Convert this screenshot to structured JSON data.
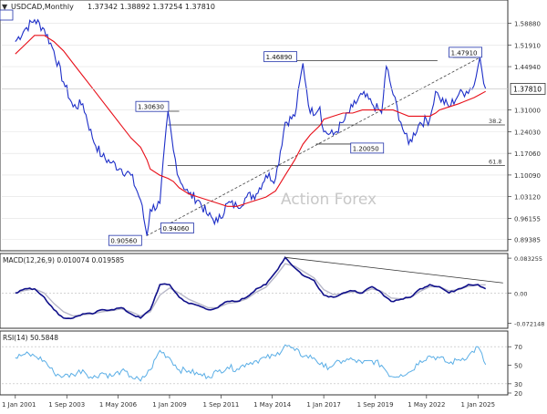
{
  "header": {
    "symbol": "USDCAD,Monthly",
    "ohlc": "1.37342 1.38892 1.37254 1.37810"
  },
  "watermark": "Action Forex",
  "colors": {
    "price": "#1e2fc8",
    "ma": "#e8101a",
    "macd": "#10108a",
    "signal": "#b8b8c8",
    "rsi": "#5aaee6",
    "levels": "#333333",
    "grid": "#e0e0e0",
    "frame": "#333333"
  },
  "chart_data": [
    {
      "type": "line",
      "panel": "price",
      "ylim": [
        0.866,
        1.652
      ],
      "y_ticks": [
        "1.58880",
        "1.51910",
        "1.44940",
        "1.37810",
        "1.31000",
        "1.24030",
        "1.17060",
        "1.10090",
        "1.03120",
        "0.96155",
        "0.89385"
      ],
      "current_value": "1.37810",
      "x": [
        2001.0,
        2001.5,
        2002.0,
        2002.5,
        2003.0,
        2003.5,
        2004.0,
        2004.5,
        2005.0,
        2005.5,
        2006.0,
        2006.5,
        2007.0,
        2007.5,
        2007.83,
        2008.0,
        2008.5,
        2008.92,
        2009.2,
        2009.5,
        2010.0,
        2010.5,
        2011.0,
        2011.5,
        2012.0,
        2012.5,
        2013.0,
        2013.5,
        2014.0,
        2014.5,
        2015.0,
        2015.5,
        2015.92,
        2016.3,
        2016.8,
        2017.0,
        2017.5,
        2018.0,
        2018.5,
        2019.0,
        2019.5,
        2020.0,
        2020.25,
        2020.6,
        2021.0,
        2021.4,
        2022.0,
        2022.5,
        2022.8,
        2023.0,
        2023.5,
        2024.0,
        2024.4,
        2024.8,
        2025.1,
        2025.4
      ],
      "series": [
        {
          "name": "",
          "values": [
            1.53,
            1.57,
            1.6,
            1.57,
            1.5,
            1.4,
            1.32,
            1.33,
            1.22,
            1.16,
            1.14,
            1.12,
            1.1,
            1.02,
            0.906,
            0.99,
            1.01,
            1.306,
            1.18,
            1.09,
            1.04,
            1.02,
            0.97,
            0.95,
            1.01,
            1.0,
            1.03,
            1.04,
            1.1,
            1.09,
            1.27,
            1.29,
            1.46,
            1.3,
            1.32,
            1.24,
            1.23,
            1.27,
            1.32,
            1.36,
            1.33,
            1.3,
            1.45,
            1.36,
            1.27,
            1.2,
            1.27,
            1.28,
            1.37,
            1.35,
            1.32,
            1.36,
            1.37,
            1.39,
            1.479,
            1.378
          ]
        },
        {
          "name": "",
          "values": [
            1.49,
            1.52,
            1.55,
            1.55,
            1.53,
            1.5,
            1.46,
            1.42,
            1.38,
            1.34,
            1.3,
            1.26,
            1.22,
            1.19,
            1.15,
            1.12,
            1.1,
            1.09,
            1.08,
            1.06,
            1.04,
            1.03,
            1.02,
            1.01,
            1.0,
            1.0,
            1.01,
            1.02,
            1.03,
            1.05,
            1.1,
            1.15,
            1.2,
            1.23,
            1.26,
            1.28,
            1.29,
            1.3,
            1.3,
            1.31,
            1.31,
            1.31,
            1.31,
            1.31,
            1.3,
            1.29,
            1.29,
            1.29,
            1.3,
            1.31,
            1.32,
            1.33,
            1.34,
            1.35,
            1.36,
            1.37
          ]
        }
      ],
      "annotations": [
        "1.30630",
        "1.46890",
        "1.47910",
        "0.90560",
        "0.94060",
        "1.20050"
      ],
      "fib_labels": [
        "38.2",
        "61.8"
      ]
    },
    {
      "type": "line",
      "panel": "macd",
      "title": "MACD(12,26,9) 0.010074 0.019585",
      "ylim": [
        -0.08,
        0.09
      ],
      "y_ticks": [
        "0.083255",
        "0.00",
        "-0.072148"
      ],
      "x": [
        2001.0,
        2001.5,
        2002.0,
        2002.5,
        2003.0,
        2003.5,
        2004.0,
        2004.5,
        2005.0,
        2005.5,
        2006.0,
        2006.5,
        2007.0,
        2007.5,
        2008.0,
        2008.5,
        2009.0,
        2009.5,
        2010.0,
        2010.5,
        2011.0,
        2011.5,
        2012.0,
        2012.5,
        2013.0,
        2013.5,
        2014.0,
        2014.5,
        2015.0,
        2015.5,
        2016.0,
        2016.5,
        2017.0,
        2017.5,
        2018.0,
        2018.5,
        2019.0,
        2019.5,
        2020.0,
        2020.5,
        2021.0,
        2021.5,
        2022.0,
        2022.5,
        2023.0,
        2023.5,
        2024.0,
        2024.5,
        2025.0,
        2025.4
      ],
      "series": [
        {
          "name": "",
          "values": [
            0.0,
            0.01,
            0.01,
            -0.01,
            -0.04,
            -0.06,
            -0.06,
            -0.05,
            -0.05,
            -0.04,
            -0.04,
            -0.035,
            -0.05,
            -0.06,
            -0.04,
            0.02,
            0.02,
            -0.01,
            -0.025,
            -0.03,
            -0.04,
            -0.035,
            -0.02,
            -0.02,
            -0.01,
            0.01,
            0.02,
            0.05,
            0.085,
            0.06,
            0.04,
            0.03,
            -0.005,
            -0.01,
            0.0,
            0.005,
            0.0,
            0.015,
            0.0,
            -0.02,
            -0.015,
            -0.01,
            0.01,
            0.02,
            0.015,
            0.0,
            0.01,
            0.02,
            0.02,
            0.01
          ]
        },
        {
          "name": "",
          "values": [
            0.0,
            0.006,
            0.01,
            0.0,
            -0.025,
            -0.045,
            -0.055,
            -0.052,
            -0.05,
            -0.045,
            -0.042,
            -0.038,
            -0.045,
            -0.055,
            -0.045,
            -0.005,
            0.012,
            0.0,
            -0.015,
            -0.025,
            -0.035,
            -0.035,
            -0.025,
            -0.022,
            -0.014,
            0.002,
            0.014,
            0.04,
            0.07,
            0.064,
            0.05,
            0.036,
            0.008,
            -0.004,
            -0.002,
            0.003,
            0.001,
            0.01,
            0.004,
            -0.012,
            -0.014,
            -0.011,
            0.004,
            0.015,
            0.015,
            0.005,
            0.008,
            0.016,
            0.019,
            0.0196
          ]
        }
      ]
    },
    {
      "type": "line",
      "panel": "rsi",
      "title": "RSI(14) 50.5848",
      "ylim": [
        20,
        85
      ],
      "y_ticks": [
        "70",
        "50",
        "30",
        "20"
      ],
      "x": [
        2001.0,
        2001.5,
        2002.0,
        2002.5,
        2003.0,
        2003.5,
        2004.0,
        2004.5,
        2005.0,
        2005.5,
        2006.0,
        2006.5,
        2007.0,
        2007.5,
        2008.0,
        2008.5,
        2009.0,
        2009.5,
        2010.0,
        2010.5,
        2011.0,
        2011.5,
        2012.0,
        2012.5,
        2013.0,
        2013.5,
        2014.0,
        2014.5,
        2015.0,
        2015.5,
        2016.0,
        2016.5,
        2017.0,
        2017.5,
        2018.0,
        2018.5,
        2019.0,
        2019.5,
        2020.0,
        2020.5,
        2021.0,
        2021.5,
        2022.0,
        2022.5,
        2023.0,
        2023.5,
        2024.0,
        2024.5,
        2025.0,
        2025.4
      ],
      "series": [
        {
          "name": "",
          "values": [
            58,
            62,
            60,
            55,
            42,
            38,
            40,
            45,
            36,
            42,
            38,
            44,
            38,
            33,
            45,
            66,
            58,
            45,
            44,
            40,
            38,
            43,
            48,
            46,
            52,
            55,
            58,
            60,
            72,
            66,
            60,
            58,
            48,
            50,
            55,
            56,
            52,
            55,
            50,
            38,
            40,
            43,
            55,
            60,
            58,
            52,
            56,
            60,
            70,
            50.6
          ]
        }
      ]
    }
  ],
  "x_axis": {
    "tick_years": [
      2001.0,
      2003.67,
      2006.33,
      2009.0,
      2011.67,
      2014.33,
      2017.0,
      2019.67,
      2022.33,
      2025.0
    ],
    "tick_labels": [
      "1 Jan 2001",
      "1 Sep 2003",
      "1 May 2006",
      "1 Jan 2009",
      "1 Sep 2011",
      "1 May 2014",
      "1 Jan 2017",
      "1 Sep 2019",
      "1 May 2022",
      "1 Jan 2025"
    ]
  }
}
